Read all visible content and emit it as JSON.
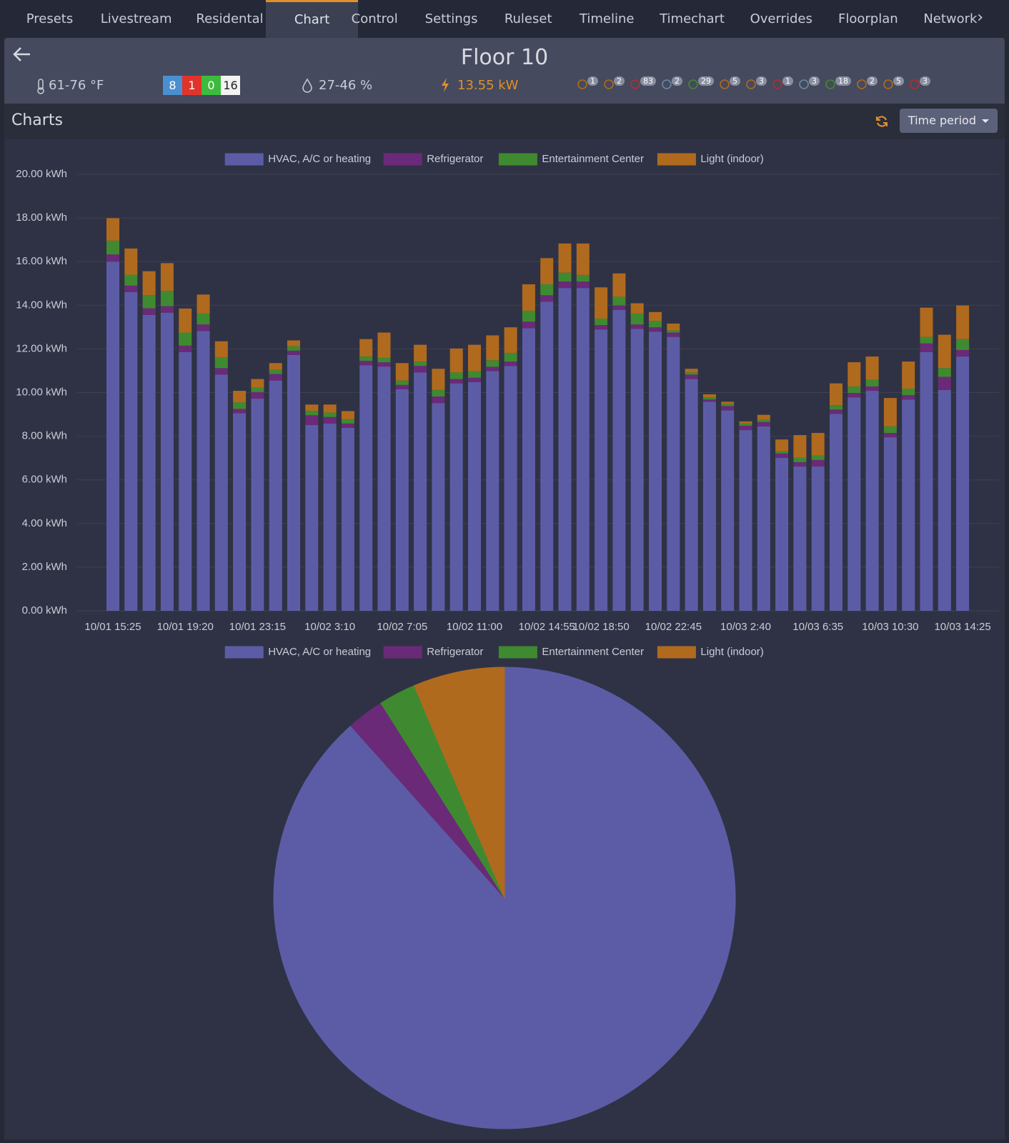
{
  "nav": {
    "tabs": [
      "Presets",
      "Livestream",
      "Residental",
      "Chart",
      "Control",
      "Settings",
      "Ruleset",
      "Timeline",
      "Timechart",
      "Overrides",
      "Floorplan",
      "Network"
    ],
    "active": 3
  },
  "header": {
    "title": "Floor 10",
    "temperature": "61-76 °F",
    "badges": [
      8,
      1,
      0,
      16
    ],
    "humidity": "27-46 %",
    "power": "13.55 kW",
    "device_counts": [
      1,
      2,
      83,
      2,
      29,
      5,
      3,
      1,
      3,
      18,
      2,
      5,
      3
    ]
  },
  "toolbar": {
    "title": "Charts",
    "button": "Time period"
  },
  "chart_data": [
    {
      "type": "bar",
      "stacked": true,
      "grid": true,
      "legend": "top",
      "categories": [
        "10/01 15:25",
        null,
        null,
        null,
        "10/01 19:20",
        null,
        null,
        null,
        "10/01 23:15",
        null,
        null,
        null,
        "10/02 3:10",
        null,
        null,
        null,
        "10/02 7:05",
        null,
        null,
        null,
        "10/02 11:00",
        null,
        null,
        null,
        "10/02 14:55",
        null,
        null,
        "10/02 18:50",
        null,
        null,
        null,
        "10/02 22:45",
        null,
        null,
        null,
        "10/03 2:40",
        null,
        null,
        null,
        "10/03 6:35",
        null,
        null,
        null,
        "10/03 10:30",
        null,
        null,
        null,
        "10/03 14:25"
      ],
      "ylim": [
        0,
        20
      ],
      "yticks": [
        {
          "value": 0,
          "label": "0.00 kWh"
        },
        {
          "value": 2,
          "label": "2.00 kWh"
        },
        {
          "value": 4,
          "label": "4.00 kWh"
        },
        {
          "value": 6,
          "label": "6.00 kWh"
        },
        {
          "value": 8,
          "label": "8.00 kWh"
        },
        {
          "value": 10,
          "label": "10.00 kWh"
        },
        {
          "value": 12,
          "label": "12.00 kWh"
        },
        {
          "value": 14,
          "label": "14.00 kWh"
        },
        {
          "value": 16,
          "label": "16.00 kWh"
        },
        {
          "value": 18,
          "label": "18.00 kWh"
        },
        {
          "value": 20,
          "label": "20.00 kWh"
        }
      ],
      "series": [
        {
          "name": "HVAC, A/C or heating",
          "color": "#5c5ca6",
          "values": [
            16.0,
            14.6,
            13.56,
            13.66,
            11.85,
            12.82,
            10.82,
            9.05,
            9.72,
            10.55,
            11.72,
            8.51,
            8.58,
            8.38,
            11.25,
            11.19,
            10.15,
            10.92,
            9.52,
            10.42,
            10.48,
            10.98,
            11.22,
            12.95,
            14.16,
            14.79,
            14.79,
            12.89,
            13.79,
            12.92,
            12.79,
            12.55,
            10.62,
            9.58,
            9.18,
            8.28,
            8.45,
            7.01,
            6.61,
            6.61,
            9.02,
            9.78,
            10.08,
            7.95,
            9.68,
            11.85,
            10.12,
            11.65
          ]
        },
        {
          "name": "Refrigerator",
          "color": "#6a2a78",
          "values": [
            0.33,
            0.3,
            0.3,
            0.3,
            0.3,
            0.3,
            0.3,
            0.2,
            0.3,
            0.3,
            0.2,
            0.45,
            0.3,
            0.2,
            0.2,
            0.2,
            0.2,
            0.3,
            0.3,
            0.2,
            0.2,
            0.2,
            0.2,
            0.3,
            0.3,
            0.3,
            0.3,
            0.2,
            0.2,
            0.2,
            0.2,
            0.2,
            0.2,
            0.1,
            0.2,
            0.2,
            0.2,
            0.2,
            0.2,
            0.3,
            0.2,
            0.2,
            0.2,
            0.2,
            0.2,
            0.4,
            0.6,
            0.3
          ]
        },
        {
          "name": "Entertainment Center",
          "color": "#3f8a30",
          "values": [
            0.63,
            0.5,
            0.6,
            0.7,
            0.6,
            0.5,
            0.5,
            0.3,
            0.2,
            0.2,
            0.2,
            0.2,
            0.2,
            0.2,
            0.2,
            0.2,
            0.2,
            0.2,
            0.3,
            0.3,
            0.3,
            0.3,
            0.4,
            0.5,
            0.5,
            0.4,
            0.3,
            0.3,
            0.4,
            0.5,
            0.3,
            0.1,
            0.1,
            0.1,
            0.1,
            0.1,
            0.1,
            0.1,
            0.2,
            0.2,
            0.2,
            0.3,
            0.3,
            0.3,
            0.3,
            0.3,
            0.4,
            0.5
          ]
        },
        {
          "name": "Light (indoor)",
          "color": "#b06a1e",
          "values": [
            1.03,
            1.2,
            1.1,
            1.27,
            1.1,
            0.87,
            0.73,
            0.53,
            0.4,
            0.3,
            0.27,
            0.29,
            0.37,
            0.37,
            0.8,
            1.16,
            0.8,
            0.77,
            0.97,
            1.1,
            1.21,
            1.14,
            1.17,
            1.21,
            1.2,
            1.34,
            1.44,
            1.43,
            1.07,
            0.47,
            0.4,
            0.31,
            0.17,
            0.14,
            0.1,
            0.1,
            0.23,
            0.54,
            1.04,
            1.04,
            1.0,
            1.11,
            1.07,
            1.3,
            1.24,
            1.34,
            1.53,
            1.54
          ]
        }
      ]
    },
    {
      "type": "pie",
      "legend": "top",
      "categories": [
        "HVAC, A/C or heating",
        "Refrigerator",
        "Entertainment Center",
        "Light (indoor)"
      ],
      "values": [
        88.4,
        2.6,
        2.6,
        6.4
      ],
      "colors": [
        "#5c5ca6",
        "#6a2a78",
        "#3f8a30",
        "#b06a1e"
      ]
    }
  ]
}
